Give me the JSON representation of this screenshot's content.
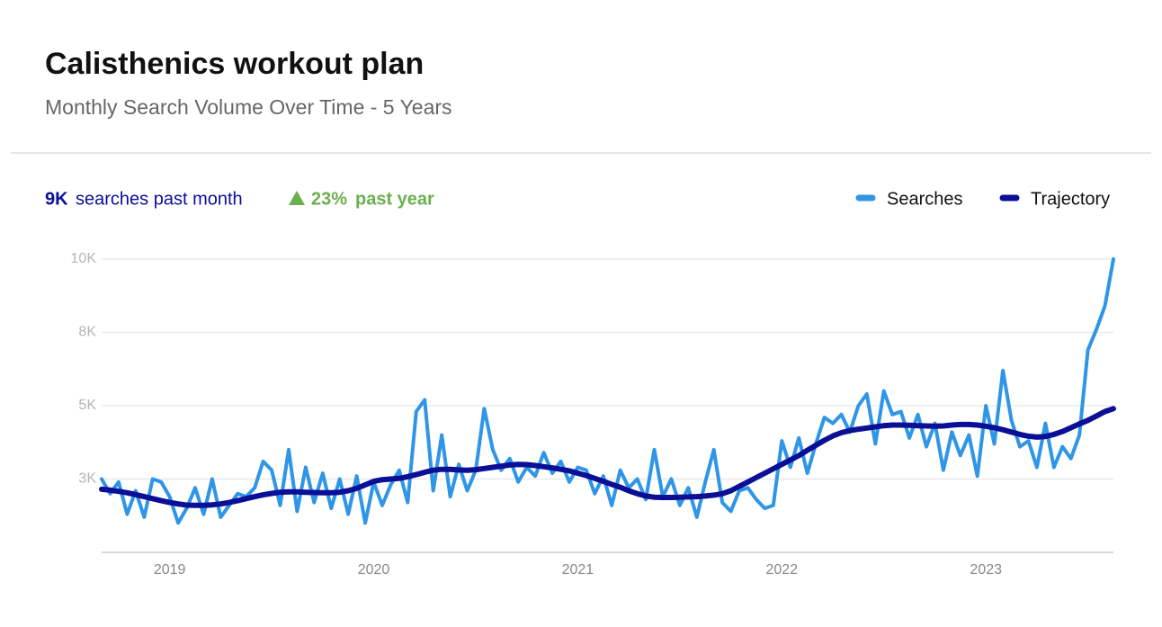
{
  "chart_data": {
    "type": "line",
    "title": "Calisthenics workout plan",
    "subtitle": "Monthly Search Volume Over Time - 5 Years",
    "stats": {
      "month_value": "9K",
      "month_text": "searches past month",
      "year_value": "23%",
      "year_text": "past year"
    },
    "categories": [
      null,
      null,
      null,
      null,
      null,
      null,
      null,
      null,
      "2019",
      null,
      null,
      null,
      null,
      null,
      null,
      null,
      null,
      null,
      null,
      null,
      null,
      null,
      null,
      null,
      null,
      null,
      null,
      null,
      null,
      null,
      null,
      null,
      "2020",
      null,
      null,
      null,
      null,
      null,
      null,
      null,
      null,
      null,
      null,
      null,
      null,
      null,
      null,
      null,
      null,
      null,
      null,
      null,
      null,
      null,
      null,
      null,
      "2021",
      null,
      null,
      null,
      null,
      null,
      null,
      null,
      null,
      null,
      null,
      null,
      null,
      null,
      null,
      null,
      null,
      null,
      null,
      null,
      null,
      null,
      null,
      null,
      "2022",
      null,
      null,
      null,
      null,
      null,
      null,
      null,
      null,
      null,
      null,
      null,
      null,
      null,
      null,
      null,
      null,
      null,
      null,
      null,
      null,
      null,
      null,
      null,
      "2023",
      null,
      null,
      null,
      null,
      null,
      null,
      null,
      null,
      null,
      null,
      null,
      null,
      null,
      null,
      null
    ],
    "series": [
      {
        "name": "Searches",
        "color": "#2f95e6",
        "width": 4,
        "values": [
          2500,
          2000,
          2400,
          1300,
          2100,
          1200,
          2500,
          2400,
          1900,
          1000,
          1500,
          2200,
          1300,
          2500,
          1200,
          1600,
          2000,
          1900,
          2200,
          3100,
          2800,
          1600,
          3500,
          1400,
          2900,
          1700,
          2700,
          1500,
          2500,
          1300,
          2600,
          1000,
          2400,
          1600,
          2300,
          2800,
          1700,
          4800,
          5200,
          2100,
          4000,
          1900,
          3000,
          2100,
          2800,
          4900,
          3500,
          2800,
          3200,
          2400,
          2900,
          2600,
          3400,
          2700,
          3100,
          2400,
          2900,
          2800,
          2000,
          2600,
          1600,
          2800,
          2200,
          2500,
          1800,
          3500,
          1900,
          2500,
          1600,
          2200,
          1200,
          2400,
          3500,
          1700,
          1400,
          2100,
          2200,
          1800,
          1500,
          1600,
          3800,
          2900,
          3900,
          2700,
          3700,
          4600,
          4400,
          4700,
          4100,
          5000,
          5400,
          3700,
          5500,
          4700,
          4800,
          3900,
          4700,
          3600,
          4400,
          2800,
          4100,
          3300,
          4000,
          2600,
          5000,
          3700,
          6200,
          4500,
          3600,
          3800,
          2900,
          4400,
          2900,
          3600,
          3200,
          4000,
          6900,
          7600,
          8400,
          10000
        ]
      },
      {
        "name": "Trajectory",
        "color": "#0a0f96",
        "width": 6,
        "values": [
          2150,
          2120,
          2080,
          2030,
          1970,
          1900,
          1830,
          1760,
          1700,
          1650,
          1610,
          1600,
          1600,
          1620,
          1650,
          1700,
          1760,
          1830,
          1900,
          1960,
          2010,
          2050,
          2060,
          2060,
          2050,
          2040,
          2030,
          2030,
          2050,
          2100,
          2180,
          2300,
          2420,
          2480,
          2500,
          2520,
          2580,
          2650,
          2730,
          2800,
          2830,
          2830,
          2810,
          2800,
          2820,
          2860,
          2900,
          2940,
          2980,
          3000,
          2990,
          2960,
          2920,
          2880,
          2830,
          2780,
          2700,
          2620,
          2520,
          2420,
          2320,
          2220,
          2100,
          2000,
          1920,
          1880,
          1870,
          1870,
          1880,
          1890,
          1900,
          1920,
          1950,
          2000,
          2100,
          2250,
          2400,
          2550,
          2700,
          2850,
          3000,
          3150,
          3300,
          3480,
          3650,
          3820,
          3970,
          4080,
          4150,
          4200,
          4240,
          4280,
          4320,
          4340,
          4340,
          4330,
          4320,
          4310,
          4300,
          4310,
          4340,
          4360,
          4360,
          4340,
          4300,
          4250,
          4180,
          4100,
          4020,
          3960,
          3930,
          3950,
          4020,
          4120,
          4250,
          4380,
          4500,
          4650,
          4800,
          4900
        ]
      }
    ],
    "ylim": [
      0,
      10000
    ],
    "yticks": [
      {
        "value": 2500,
        "label": "3K"
      },
      {
        "value": 5000,
        "label": "5K"
      },
      {
        "value": 7500,
        "label": "8K"
      },
      {
        "value": 10000,
        "label": "10K"
      }
    ],
    "grid": true
  }
}
